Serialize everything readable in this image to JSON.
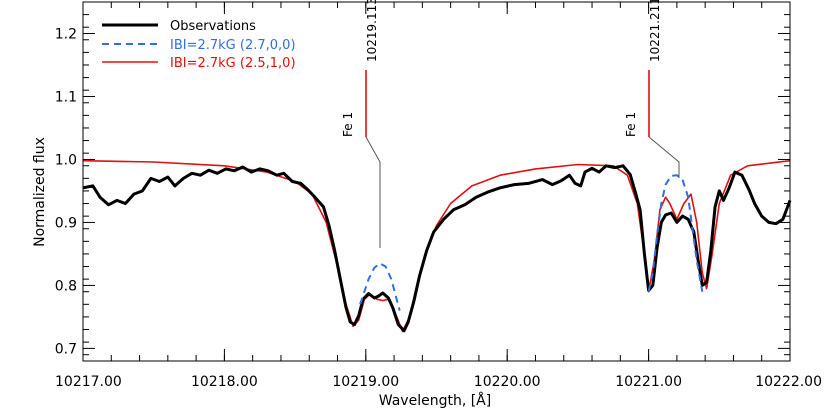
{
  "chart_data": {
    "type": "line",
    "xlabel": "Wavelength, [Å]",
    "ylabel": "Normalized flux",
    "xlim": [
      10217.0,
      10222.0
    ],
    "ylim": [
      0.68,
      1.25
    ],
    "grid": false,
    "legend_position": "top-left",
    "x_ticks": [
      {
        "value": 10217.0,
        "label": "10217.00"
      },
      {
        "value": 10218.0,
        "label": "10218.00"
      },
      {
        "value": 10219.0,
        "label": "10219.00"
      },
      {
        "value": 10220.0,
        "label": "10220.00"
      },
      {
        "value": 10221.0,
        "label": "10221.00"
      },
      {
        "value": 10222.0,
        "label": "10222.00"
      }
    ],
    "y_ticks": [
      {
        "value": 0.7,
        "label": "0.7"
      },
      {
        "value": 0.8,
        "label": "0.8"
      },
      {
        "value": 0.9,
        "label": "0.9"
      },
      {
        "value": 1.0,
        "label": "1.0"
      },
      {
        "value": 1.1,
        "label": "1.1"
      },
      {
        "value": 1.2,
        "label": "1.2"
      }
    ],
    "series": [
      {
        "name": "Observations",
        "color": "#000000",
        "style": "solid",
        "points": [
          [
            10217.0,
            0.955
          ],
          [
            10217.07,
            0.958
          ],
          [
            10217.12,
            0.94
          ],
          [
            10217.18,
            0.928
          ],
          [
            10217.24,
            0.935
          ],
          [
            10217.3,
            0.93
          ],
          [
            10217.36,
            0.945
          ],
          [
            10217.42,
            0.95
          ],
          [
            10217.48,
            0.97
          ],
          [
            10217.54,
            0.965
          ],
          [
            10217.6,
            0.972
          ],
          [
            10217.65,
            0.958
          ],
          [
            10217.71,
            0.97
          ],
          [
            10217.77,
            0.978
          ],
          [
            10217.83,
            0.975
          ],
          [
            10217.89,
            0.983
          ],
          [
            10217.95,
            0.978
          ],
          [
            10218.01,
            0.985
          ],
          [
            10218.07,
            0.982
          ],
          [
            10218.13,
            0.988
          ],
          [
            10218.19,
            0.98
          ],
          [
            10218.25,
            0.985
          ],
          [
            10218.31,
            0.982
          ],
          [
            10218.37,
            0.975
          ],
          [
            10218.42,
            0.978
          ],
          [
            10218.48,
            0.965
          ],
          [
            10218.54,
            0.962
          ],
          [
            10218.59,
            0.952
          ],
          [
            10218.64,
            0.94
          ],
          [
            10218.7,
            0.925
          ],
          [
            10218.74,
            0.895
          ],
          [
            10218.78,
            0.855
          ],
          [
            10218.82,
            0.81
          ],
          [
            10218.86,
            0.765
          ],
          [
            10218.89,
            0.742
          ],
          [
            10218.92,
            0.738
          ],
          [
            10218.95,
            0.752
          ],
          [
            10218.98,
            0.778
          ],
          [
            10219.02,
            0.787
          ],
          [
            10219.06,
            0.78
          ],
          [
            10219.09,
            0.783
          ],
          [
            10219.12,
            0.788
          ],
          [
            10219.16,
            0.78
          ],
          [
            10219.19,
            0.765
          ],
          [
            10219.23,
            0.738
          ],
          [
            10219.27,
            0.728
          ],
          [
            10219.3,
            0.742
          ],
          [
            10219.34,
            0.775
          ],
          [
            10219.38,
            0.815
          ],
          [
            10219.43,
            0.855
          ],
          [
            10219.48,
            0.885
          ],
          [
            10219.55,
            0.905
          ],
          [
            10219.62,
            0.92
          ],
          [
            10219.7,
            0.928
          ],
          [
            10219.78,
            0.94
          ],
          [
            10219.86,
            0.948
          ],
          [
            10219.95,
            0.955
          ],
          [
            10220.05,
            0.96
          ],
          [
            10220.15,
            0.962
          ],
          [
            10220.25,
            0.968
          ],
          [
            10220.32,
            0.96
          ],
          [
            10220.38,
            0.966
          ],
          [
            10220.44,
            0.975
          ],
          [
            10220.48,
            0.962
          ],
          [
            10220.52,
            0.958
          ],
          [
            10220.55,
            0.98
          ],
          [
            10220.6,
            0.986
          ],
          [
            10220.65,
            0.98
          ],
          [
            10220.7,
            0.99
          ],
          [
            10220.76,
            0.987
          ],
          [
            10220.82,
            0.99
          ],
          [
            10220.87,
            0.976
          ],
          [
            10220.91,
            0.945
          ],
          [
            10220.94,
            0.92
          ],
          [
            10220.97,
            0.85
          ],
          [
            10221.0,
            0.792
          ],
          [
            10221.03,
            0.8
          ],
          [
            10221.06,
            0.86
          ],
          [
            10221.09,
            0.9
          ],
          [
            10221.12,
            0.912
          ],
          [
            10221.16,
            0.915
          ],
          [
            10221.2,
            0.9
          ],
          [
            10221.24,
            0.91
          ],
          [
            10221.28,
            0.905
          ],
          [
            10221.32,
            0.885
          ],
          [
            10221.35,
            0.84
          ],
          [
            10221.38,
            0.8
          ],
          [
            10221.41,
            0.805
          ],
          [
            10221.44,
            0.855
          ],
          [
            10221.47,
            0.925
          ],
          [
            10221.5,
            0.95
          ],
          [
            10221.53,
            0.935
          ],
          [
            10221.57,
            0.955
          ],
          [
            10221.61,
            0.98
          ],
          [
            10221.66,
            0.975
          ],
          [
            10221.71,
            0.952
          ],
          [
            10221.75,
            0.93
          ],
          [
            10221.8,
            0.91
          ],
          [
            10221.85,
            0.9
          ],
          [
            10221.9,
            0.898
          ],
          [
            10221.95,
            0.905
          ],
          [
            10222.0,
            0.935
          ]
        ]
      },
      {
        "name": "IBI=2.7kG (2.7,0,0)",
        "color": "#2f6fdf",
        "style": "dashed",
        "points": [
          [
            10218.96,
            0.77
          ],
          [
            10218.99,
            0.79
          ],
          [
            10219.02,
            0.81
          ],
          [
            10219.06,
            0.828
          ],
          [
            10219.1,
            0.835
          ],
          [
            10219.14,
            0.83
          ],
          [
            10219.18,
            0.81
          ],
          [
            10219.21,
            0.785
          ],
          [
            10219.24,
            0.76
          ],
          [
            10221.0,
            0.79
          ],
          [
            10221.03,
            0.82
          ],
          [
            10221.06,
            0.88
          ],
          [
            10221.09,
            0.93
          ],
          [
            10221.12,
            0.96
          ],
          [
            10221.16,
            0.974
          ],
          [
            10221.2,
            0.975
          ],
          [
            10221.24,
            0.968
          ],
          [
            10221.28,
            0.94
          ],
          [
            10221.31,
            0.89
          ],
          [
            10221.34,
            0.84
          ],
          [
            10221.38,
            0.79
          ]
        ]
      },
      {
        "name": "IBI=2.7kG (2.5,1,0)",
        "color": "#e01010",
        "style": "solid",
        "points": [
          [
            10217.0,
            0.998
          ],
          [
            10217.5,
            0.996
          ],
          [
            10218.0,
            0.99
          ],
          [
            10218.3,
            0.98
          ],
          [
            10218.5,
            0.965
          ],
          [
            10218.62,
            0.945
          ],
          [
            10218.72,
            0.9
          ],
          [
            10218.8,
            0.83
          ],
          [
            10218.86,
            0.77
          ],
          [
            10218.91,
            0.735
          ],
          [
            10218.95,
            0.745
          ],
          [
            10218.99,
            0.778
          ],
          [
            10219.03,
            0.786
          ],
          [
            10219.08,
            0.778
          ],
          [
            10219.12,
            0.776
          ],
          [
            10219.16,
            0.778
          ],
          [
            10219.21,
            0.755
          ],
          [
            10219.26,
            0.727
          ],
          [
            10219.31,
            0.75
          ],
          [
            10219.36,
            0.8
          ],
          [
            10219.42,
            0.85
          ],
          [
            10219.5,
            0.895
          ],
          [
            10219.6,
            0.93
          ],
          [
            10219.75,
            0.958
          ],
          [
            10219.95,
            0.975
          ],
          [
            10220.2,
            0.985
          ],
          [
            10220.5,
            0.992
          ],
          [
            10220.75,
            0.99
          ],
          [
            10220.85,
            0.975
          ],
          [
            10220.92,
            0.93
          ],
          [
            10220.97,
            0.85
          ],
          [
            10221.0,
            0.79
          ],
          [
            10221.04,
            0.84
          ],
          [
            10221.08,
            0.92
          ],
          [
            10221.12,
            0.94
          ],
          [
            10221.15,
            0.93
          ],
          [
            10221.2,
            0.905
          ],
          [
            10221.25,
            0.93
          ],
          [
            10221.3,
            0.945
          ],
          [
            10221.34,
            0.9
          ],
          [
            10221.38,
            0.82
          ],
          [
            10221.41,
            0.795
          ],
          [
            10221.45,
            0.85
          ],
          [
            10221.5,
            0.93
          ],
          [
            10221.58,
            0.975
          ],
          [
            10221.7,
            0.99
          ],
          [
            10222.0,
            0.998
          ]
        ]
      }
    ],
    "annotations": [
      {
        "label": "Fe 1",
        "wavelength_label": "10219.113",
        "line_x": 10219.113,
        "color": "#e01010"
      },
      {
        "label": "Fe 1",
        "wavelength_label": "10221.211",
        "line_x": 10221.211,
        "color": "#e01010"
      }
    ]
  }
}
